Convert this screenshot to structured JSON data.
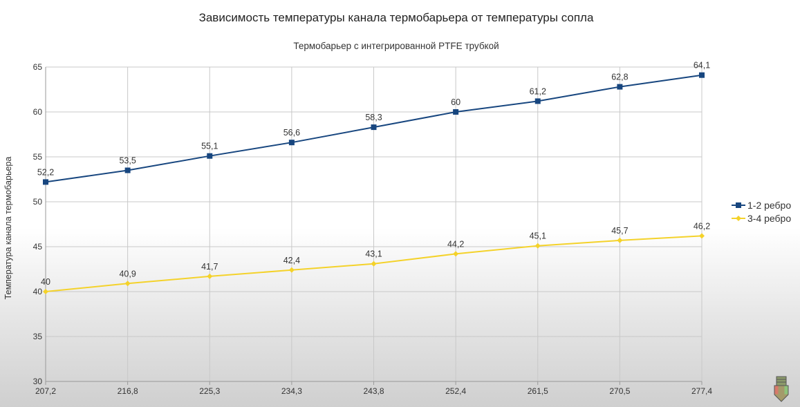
{
  "chart_data": {
    "type": "line",
    "title": "Зависимость температуры канала термобарьера от температуры сопла",
    "subtitle": "Термобарьер с интегрированной PTFE трубкой",
    "xlabel": "",
    "ylabel": "Температура канала термобарьера",
    "categories": [
      "207,2",
      "216,8",
      "225,3",
      "234,3",
      "243,8",
      "252,4",
      "261,5",
      "270,5",
      "277,4"
    ],
    "ylim": [
      30,
      65
    ],
    "yticks": [
      30,
      35,
      40,
      45,
      50,
      55,
      60,
      65
    ],
    "grid": true,
    "legend_position": "right",
    "series": [
      {
        "name": "1-2 ребро",
        "color": "#17467f",
        "marker": "square",
        "values": [
          52.2,
          53.5,
          55.1,
          56.6,
          58.3,
          60,
          61.2,
          62.8,
          64.1
        ]
      },
      {
        "name": "3-4 ребро",
        "color": "#f4d22a",
        "marker": "diamond",
        "values": [
          40,
          40.9,
          41.7,
          42.4,
          43.1,
          44.2,
          45.1,
          45.7,
          46.2
        ]
      }
    ]
  },
  "logo": {
    "icon": "nozzle-icon"
  }
}
